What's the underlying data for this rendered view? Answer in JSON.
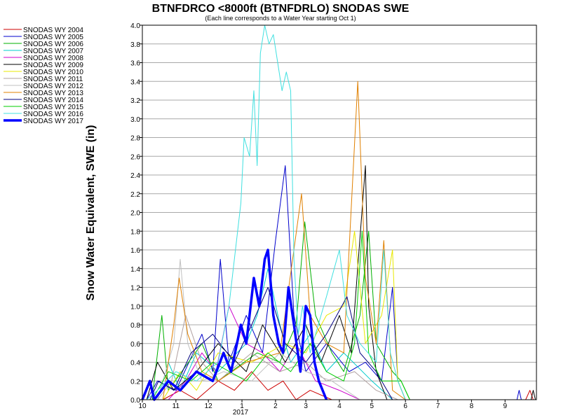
{
  "chart_data": {
    "type": "line",
    "title": "BTNFDRCO <8000ft (BTNFDRLO) SNODAS SWE",
    "subtitle": "(Each line corresponds to a Water Year starting Oct 1)",
    "ylabel": "Snow Water Equivalent, SWE (in)",
    "xlabel": "",
    "ylim": [
      0,
      4.0
    ],
    "yticks": [
      "0.0",
      "0.2",
      "0.4",
      "0.6",
      "0.8",
      "1.0",
      "1.2",
      "1.4",
      "1.6",
      "1.8",
      "2.0",
      "2.2",
      "2.4",
      "2.6",
      "2.8",
      "3.0",
      "3.2",
      "3.4",
      "3.6",
      "3.8",
      "4.0"
    ],
    "xlim": [
      "2016-10-01",
      "2017-09-30"
    ],
    "xticks": [
      {
        "label": "10",
        "date": "2016-10-01"
      },
      {
        "label": "11",
        "date": "2016-11-01"
      },
      {
        "label": "12",
        "date": "2016-12-01"
      },
      {
        "label": "1",
        "date": "2017-01-01"
      },
      {
        "label": "2",
        "date": "2017-02-01"
      },
      {
        "label": "3",
        "date": "2017-03-01"
      },
      {
        "label": "4",
        "date": "2017-04-01"
      },
      {
        "label": "5",
        "date": "2017-05-01"
      },
      {
        "label": "6",
        "date": "2017-06-01"
      },
      {
        "label": "7",
        "date": "2017-07-01"
      },
      {
        "label": "8",
        "date": "2017-08-01"
      },
      {
        "label": "9",
        "date": "2017-09-01"
      }
    ],
    "year_label": "2017",
    "grid": "horizontal",
    "legend_position": "left",
    "series": [
      {
        "name": "SNODAS WY 2004",
        "color": "#cc0000",
        "width": 1,
        "points": [
          [
            "2016-10-20",
            0.0
          ],
          [
            "2016-11-05",
            0.1
          ],
          [
            "2016-11-20",
            0.0
          ],
          [
            "2016-12-10",
            0.2
          ],
          [
            "2016-12-25",
            0.1
          ],
          [
            "2017-01-10",
            0.3
          ],
          [
            "2017-01-25",
            0.1
          ],
          [
            "2017-02-08",
            0.2
          ],
          [
            "2017-02-20",
            0.0
          ],
          [
            "2017-03-05",
            0.1
          ],
          [
            "2017-03-25",
            0.0
          ],
          [
            "2017-09-20",
            0.0
          ],
          [
            "2017-09-24",
            0.1
          ],
          [
            "2017-09-27",
            0.0
          ]
        ]
      },
      {
        "name": "SNODAS WY 2005",
        "color": "#0000cc",
        "width": 1,
        "points": [
          [
            "2016-10-05",
            0.0
          ],
          [
            "2016-10-15",
            0.2
          ],
          [
            "2016-11-01",
            0.1
          ],
          [
            "2016-11-25",
            0.7
          ],
          [
            "2016-12-05",
            0.3
          ],
          [
            "2016-12-12",
            1.5
          ],
          [
            "2016-12-20",
            0.4
          ],
          [
            "2017-01-05",
            0.9
          ],
          [
            "2017-01-20",
            0.5
          ],
          [
            "2017-02-01",
            1.7
          ],
          [
            "2017-02-10",
            2.5
          ],
          [
            "2017-02-18",
            0.9
          ],
          [
            "2017-03-01",
            0.3
          ],
          [
            "2017-03-20",
            0.6
          ],
          [
            "2017-04-10",
            0.3
          ],
          [
            "2017-04-25",
            0.4
          ],
          [
            "2017-05-10",
            0.2
          ],
          [
            "2017-05-20",
            1.2
          ],
          [
            "2017-05-25",
            0.2
          ],
          [
            "2017-06-01",
            0.0
          ],
          [
            "2017-09-12",
            0.0
          ],
          [
            "2017-09-14",
            0.1
          ],
          [
            "2017-09-16",
            0.0
          ]
        ]
      },
      {
        "name": "SNODAS WY 2006",
        "color": "#00b000",
        "width": 1,
        "points": [
          [
            "2016-10-10",
            0.0
          ],
          [
            "2016-10-19",
            0.9
          ],
          [
            "2016-10-25",
            0.1
          ],
          [
            "2016-11-25",
            0.6
          ],
          [
            "2016-12-10",
            0.2
          ],
          [
            "2017-01-15",
            0.5
          ],
          [
            "2017-02-05",
            0.4
          ],
          [
            "2017-02-20",
            0.8
          ],
          [
            "2017-02-28",
            1.9
          ],
          [
            "2017-03-10",
            0.9
          ],
          [
            "2017-03-25",
            0.5
          ],
          [
            "2017-04-05",
            0.3
          ],
          [
            "2017-04-20",
            0.9
          ],
          [
            "2017-04-28",
            1.8
          ],
          [
            "2017-05-05",
            0.6
          ],
          [
            "2017-05-20",
            0.3
          ],
          [
            "2017-05-28",
            0.2
          ],
          [
            "2017-06-05",
            0.0
          ]
        ]
      },
      {
        "name": "SNODAS WY 2007",
        "color": "#00cccc",
        "width": 1,
        "points": [
          [
            "2016-10-15",
            0.0
          ],
          [
            "2016-10-25",
            0.4
          ],
          [
            "2016-11-05",
            0.1
          ],
          [
            "2016-11-20",
            0.5
          ],
          [
            "2016-12-10",
            0.3
          ],
          [
            "2017-01-05",
            0.6
          ],
          [
            "2017-01-15",
            0.9
          ],
          [
            "2017-01-25",
            1.4
          ],
          [
            "2017-02-05",
            0.8
          ],
          [
            "2017-02-15",
            0.4
          ],
          [
            "2017-03-05",
            0.7
          ],
          [
            "2017-03-20",
            0.3
          ],
          [
            "2017-04-05",
            0.5
          ],
          [
            "2017-05-01",
            0.2
          ],
          [
            "2017-05-20",
            0.0
          ]
        ]
      },
      {
        "name": "SNODAS WY 2008",
        "color": "#cc00cc",
        "width": 1,
        "points": [
          [
            "2016-10-25",
            0.0
          ],
          [
            "2016-11-10",
            0.2
          ],
          [
            "2016-11-25",
            0.5
          ],
          [
            "2016-12-08",
            0.3
          ],
          [
            "2016-12-20",
            1.0
          ],
          [
            "2017-01-05",
            0.6
          ],
          [
            "2017-01-20",
            0.5
          ],
          [
            "2017-02-05",
            0.3
          ],
          [
            "2017-02-20",
            0.6
          ],
          [
            "2017-03-10",
            0.2
          ],
          [
            "2017-04-01",
            0.1
          ],
          [
            "2017-04-20",
            0.0
          ]
        ]
      },
      {
        "name": "SNODAS WY 2009",
        "color": "#000000",
        "width": 1,
        "points": [
          [
            "2016-10-05",
            0.0
          ],
          [
            "2016-10-15",
            0.4
          ],
          [
            "2016-10-30",
            0.1
          ],
          [
            "2016-11-20",
            0.3
          ],
          [
            "2016-12-10",
            0.6
          ],
          [
            "2017-01-05",
            0.3
          ],
          [
            "2017-01-20",
            0.8
          ],
          [
            "2017-02-10",
            0.4
          ],
          [
            "2017-03-01",
            0.8
          ],
          [
            "2017-03-15",
            0.4
          ],
          [
            "2017-04-01",
            0.9
          ],
          [
            "2017-04-12",
            0.5
          ],
          [
            "2017-04-25",
            2.5
          ],
          [
            "2017-04-28",
            1.0
          ],
          [
            "2017-05-05",
            0.3
          ],
          [
            "2017-05-15",
            0.0
          ],
          [
            "2017-09-25",
            0.0
          ],
          [
            "2017-09-27",
            0.1
          ],
          [
            "2017-09-29",
            0.0
          ]
        ]
      },
      {
        "name": "SNODAS WY 2010",
        "color": "#e8e800",
        "width": 1,
        "points": [
          [
            "2016-10-20",
            0.0
          ],
          [
            "2016-11-05",
            0.3
          ],
          [
            "2016-11-20",
            0.1
          ],
          [
            "2016-12-10",
            0.5
          ],
          [
            "2017-01-10",
            0.4
          ],
          [
            "2017-02-10",
            0.6
          ],
          [
            "2017-03-01",
            0.5
          ],
          [
            "2017-03-20",
            0.9
          ],
          [
            "2017-04-05",
            1.0
          ],
          [
            "2017-04-15",
            1.8
          ],
          [
            "2017-04-25",
            0.6
          ],
          [
            "2017-05-10",
            0.9
          ],
          [
            "2017-05-20",
            1.6
          ],
          [
            "2017-05-25",
            0.2
          ],
          [
            "2017-06-01",
            0.0
          ]
        ]
      },
      {
        "name": "SNODAS WY 2011",
        "color": "#b0a0a0",
        "width": 1,
        "points": [
          [
            "2016-10-15",
            0.0
          ],
          [
            "2016-10-28",
            0.2
          ],
          [
            "2016-11-10",
            0.9
          ],
          [
            "2016-11-25",
            0.4
          ],
          [
            "2016-12-10",
            0.2
          ],
          [
            "2017-01-10",
            0.5
          ],
          [
            "2017-02-05",
            0.3
          ],
          [
            "2017-03-01",
            0.4
          ],
          [
            "2017-03-20",
            0.2
          ],
          [
            "2017-04-15",
            0.3
          ],
          [
            "2017-05-05",
            0.1
          ],
          [
            "2017-05-25",
            0.0
          ]
        ]
      },
      {
        "name": "SNODAS WY 2012",
        "color": "#c0c0c0",
        "width": 1,
        "points": [
          [
            "2016-10-15",
            0.0
          ],
          [
            "2016-10-30",
            0.6
          ],
          [
            "2016-11-05",
            1.5
          ],
          [
            "2016-11-12",
            0.6
          ],
          [
            "2016-11-25",
            0.2
          ],
          [
            "2016-12-15",
            0.3
          ],
          [
            "2017-01-10",
            0.2
          ],
          [
            "2017-02-05",
            0.5
          ],
          [
            "2017-03-01",
            0.3
          ],
          [
            "2017-03-25",
            0.2
          ],
          [
            "2017-04-20",
            0.0
          ]
        ]
      },
      {
        "name": "SNODAS WY 2013",
        "color": "#e08000",
        "width": 1,
        "points": [
          [
            "2016-10-20",
            0.0
          ],
          [
            "2016-10-30",
            0.8
          ],
          [
            "2016-11-04",
            1.3
          ],
          [
            "2016-11-12",
            0.7
          ],
          [
            "2016-11-25",
            0.3
          ],
          [
            "2016-12-10",
            0.2
          ],
          [
            "2017-01-05",
            0.4
          ],
          [
            "2017-02-05",
            0.5
          ],
          [
            "2017-02-25",
            2.2
          ],
          [
            "2017-03-05",
            0.9
          ],
          [
            "2017-03-20",
            0.6
          ],
          [
            "2017-04-05",
            0.5
          ],
          [
            "2017-04-18",
            3.4
          ],
          [
            "2017-04-25",
            1.3
          ],
          [
            "2017-05-05",
            0.6
          ],
          [
            "2017-05-12",
            1.7
          ],
          [
            "2017-05-20",
            0.1
          ],
          [
            "2017-06-01",
            0.0
          ]
        ]
      },
      {
        "name": "SNODAS WY 2014",
        "color": "#000080",
        "width": 1,
        "points": [
          [
            "2016-10-08",
            0.0
          ],
          [
            "2016-10-16",
            0.2
          ],
          [
            "2016-10-30",
            0.1
          ],
          [
            "2016-11-15",
            0.5
          ],
          [
            "2016-12-05",
            0.7
          ],
          [
            "2016-12-25",
            0.4
          ],
          [
            "2017-01-10",
            0.8
          ],
          [
            "2017-01-25",
            1.2
          ],
          [
            "2017-02-10",
            0.6
          ],
          [
            "2017-03-01",
            0.4
          ],
          [
            "2017-03-20",
            0.7
          ],
          [
            "2017-04-08",
            1.1
          ],
          [
            "2017-04-20",
            0.5
          ],
          [
            "2017-05-05",
            0.3
          ],
          [
            "2017-05-20",
            0.0
          ]
        ]
      },
      {
        "name": "SNODAS WY 2015",
        "color": "#00cc00",
        "width": 1,
        "points": [
          [
            "2016-10-10",
            0.0
          ],
          [
            "2016-10-25",
            0.3
          ],
          [
            "2016-11-15",
            0.2
          ],
          [
            "2016-12-05",
            0.4
          ],
          [
            "2017-01-05",
            0.2
          ],
          [
            "2017-01-25",
            0.5
          ],
          [
            "2017-02-15",
            0.3
          ],
          [
            "2017-03-05",
            0.6
          ],
          [
            "2017-03-20",
            0.3
          ],
          [
            "2017-04-05",
            0.2
          ],
          [
            "2017-04-15",
            0.6
          ],
          [
            "2017-04-22",
            1.8
          ],
          [
            "2017-04-28",
            0.5
          ],
          [
            "2017-05-10",
            0.2
          ],
          [
            "2017-05-28",
            0.2
          ],
          [
            "2017-06-05",
            0.0
          ]
        ]
      },
      {
        "name": "SNODAS WY 2016",
        "color": "#40e0e0",
        "width": 1,
        "points": [
          [
            "2016-10-05",
            0.0
          ],
          [
            "2016-10-15",
            0.1
          ],
          [
            "2016-11-01",
            0.3
          ],
          [
            "2016-11-20",
            0.2
          ],
          [
            "2016-12-10",
            0.4
          ],
          [
            "2016-12-20",
            1.0
          ],
          [
            "2016-12-31",
            2.1
          ],
          [
            "2017-01-03",
            2.8
          ],
          [
            "2017-01-08",
            2.6
          ],
          [
            "2017-01-12",
            3.3
          ],
          [
            "2017-01-15",
            2.5
          ],
          [
            "2017-01-18",
            3.7
          ],
          [
            "2017-01-22",
            4.0
          ],
          [
            "2017-01-26",
            3.8
          ],
          [
            "2017-01-30",
            3.9
          ],
          [
            "2017-02-03",
            3.6
          ],
          [
            "2017-02-07",
            3.3
          ],
          [
            "2017-02-11",
            3.5
          ],
          [
            "2017-02-15",
            3.3
          ],
          [
            "2017-02-18",
            1.5
          ],
          [
            "2017-02-22",
            0.7
          ],
          [
            "2017-02-26",
            1.0
          ],
          [
            "2017-03-05",
            0.5
          ],
          [
            "2017-03-20",
            1.1
          ],
          [
            "2017-04-01",
            1.6
          ],
          [
            "2017-04-08",
            0.9
          ],
          [
            "2017-04-20",
            0.6
          ],
          [
            "2017-05-05",
            0.4
          ],
          [
            "2017-05-12",
            1.6
          ],
          [
            "2017-05-18",
            0.5
          ],
          [
            "2017-05-25",
            0.2
          ],
          [
            "2017-06-01",
            0.0
          ]
        ]
      },
      {
        "name": "SNODAS WY 2017",
        "color": "#0000ff",
        "width": 3.5,
        "points": [
          [
            "2016-10-01",
            0.0
          ],
          [
            "2016-10-08",
            0.2
          ],
          [
            "2016-10-12",
            0.0
          ],
          [
            "2016-10-25",
            0.2
          ],
          [
            "2016-11-05",
            0.1
          ],
          [
            "2016-11-20",
            0.3
          ],
          [
            "2016-12-05",
            0.2
          ],
          [
            "2016-12-15",
            0.5
          ],
          [
            "2016-12-22",
            0.3
          ],
          [
            "2016-12-31",
            0.8
          ],
          [
            "2017-01-05",
            0.6
          ],
          [
            "2017-01-12",
            1.3
          ],
          [
            "2017-01-17",
            1.0
          ],
          [
            "2017-01-22",
            1.5
          ],
          [
            "2017-01-25",
            1.6
          ],
          [
            "2017-01-30",
            0.9
          ],
          [
            "2017-02-04",
            0.6
          ],
          [
            "2017-02-08",
            0.5
          ],
          [
            "2017-02-13",
            1.2
          ],
          [
            "2017-02-18",
            0.8
          ],
          [
            "2017-02-24",
            0.3
          ],
          [
            "2017-03-01",
            1.0
          ],
          [
            "2017-03-05",
            0.9
          ],
          [
            "2017-03-09",
            0.4
          ],
          [
            "2017-03-13",
            0.2
          ],
          [
            "2017-03-20",
            0.0
          ]
        ]
      }
    ]
  }
}
